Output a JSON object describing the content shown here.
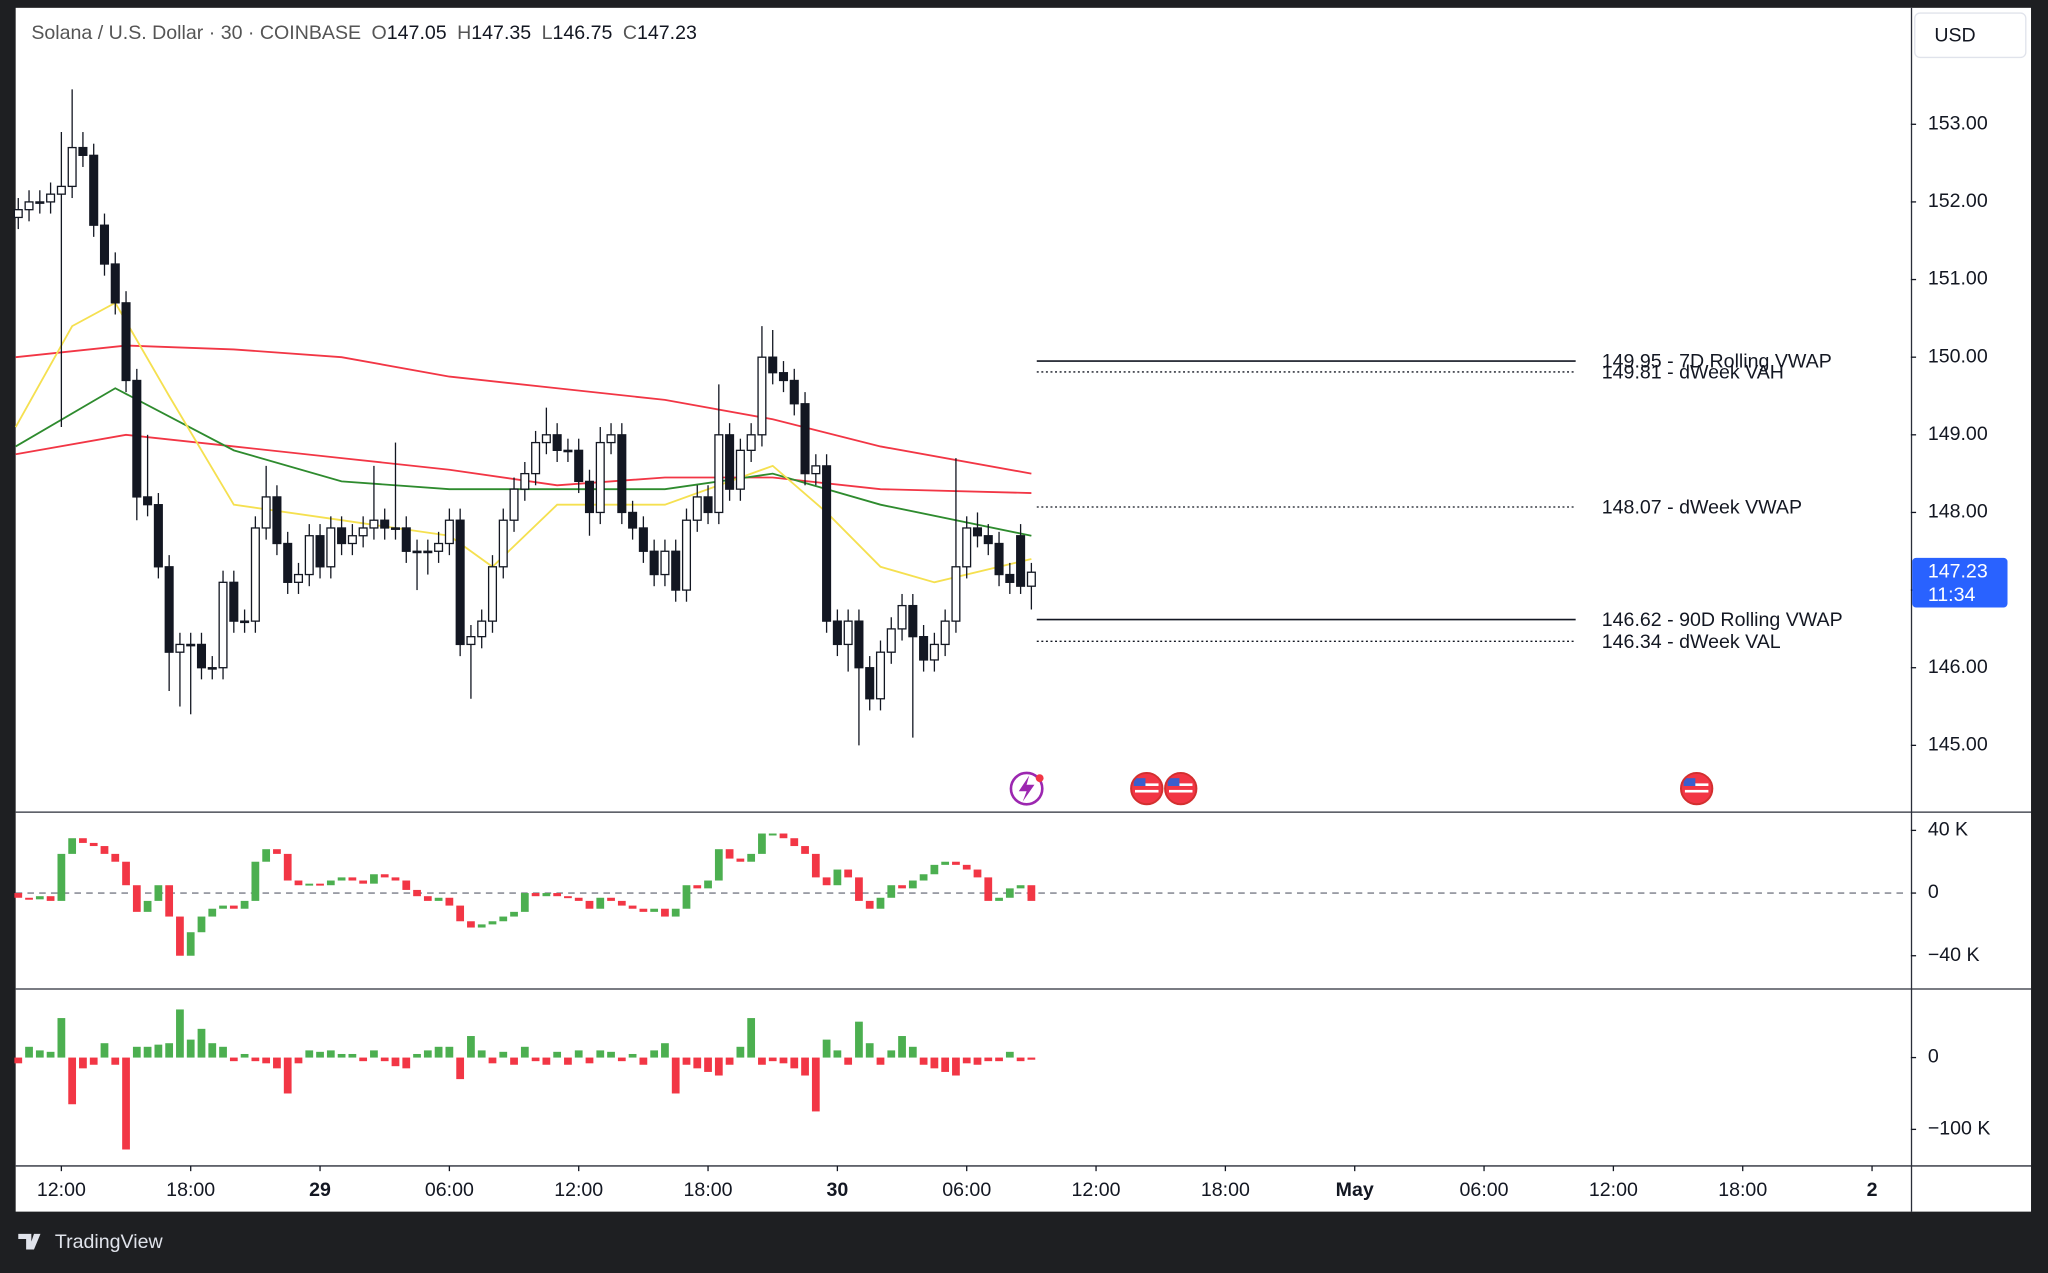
{
  "header": {
    "symbol": "Solana / U.S. Dollar · 30 · COINBASE",
    "ohlc": [
      {
        "label": "O",
        "value": 147.05
      },
      {
        "label": "H",
        "value": 147.35
      },
      {
        "label": "L",
        "value": 146.75
      },
      {
        "label": "C",
        "value": 147.23
      }
    ]
  },
  "chart_data": [
    {
      "type": "candlestick",
      "currency": "USD",
      "up_color": "#ffffff",
      "down_color": "#131722",
      "xlim": [
        -0.24,
        175.6
      ],
      "ylim": [
        144.14,
        154.5
      ],
      "yticks": [
        {
          "value": 145,
          "label": "145.00"
        },
        {
          "value": 146,
          "label": "146.00"
        },
        {
          "value": 147,
          "label": "147.00"
        },
        {
          "value": 148,
          "label": "148.00"
        },
        {
          "value": 149,
          "label": "149.00"
        },
        {
          "value": 150,
          "label": "150.00"
        },
        {
          "value": 151,
          "label": "151.00"
        },
        {
          "value": 152,
          "label": "152.00"
        },
        {
          "value": 153,
          "label": "153.00"
        }
      ],
      "xticks": [
        {
          "value": 4,
          "label": "12:00"
        },
        {
          "value": 16,
          "label": "18:00"
        },
        {
          "value": 28,
          "label": "29"
        },
        {
          "value": 40,
          "label": "06:00"
        },
        {
          "value": 52,
          "label": "12:00"
        },
        {
          "value": 64,
          "label": "18:00"
        },
        {
          "value": 76,
          "label": "30"
        },
        {
          "value": 88,
          "label": "06:00"
        },
        {
          "value": 100,
          "label": "12:00"
        },
        {
          "value": 112,
          "label": "18:00"
        },
        {
          "value": 124,
          "label": "May"
        },
        {
          "value": 136,
          "label": "06:00"
        },
        {
          "value": 148,
          "label": "12:00"
        },
        {
          "value": 160,
          "label": "18:00"
        },
        {
          "value": 172,
          "label": "2"
        }
      ],
      "last_price": {
        "value": 147.23,
        "countdown": "11:34",
        "color": "#2962ff"
      },
      "candles": [
        [
          151.8,
          152.05,
          151.65,
          151.9
        ],
        [
          151.9,
          152.15,
          151.75,
          152.0
        ],
        [
          152.0,
          152.15,
          151.85,
          152.0
        ],
        [
          152.0,
          152.25,
          151.85,
          152.1
        ],
        [
          152.1,
          152.9,
          149.1,
          152.2
        ],
        [
          152.2,
          153.45,
          152.05,
          152.7
        ],
        [
          152.7,
          152.9,
          152.45,
          152.6
        ],
        [
          152.6,
          152.75,
          151.55,
          151.7
        ],
        [
          151.7,
          151.85,
          151.05,
          151.2
        ],
        [
          151.2,
          151.35,
          150.55,
          150.7
        ],
        [
          150.7,
          150.85,
          149.55,
          149.7
        ],
        [
          149.7,
          149.85,
          147.9,
          148.2
        ],
        [
          148.2,
          149.0,
          147.95,
          148.1
        ],
        [
          148.1,
          148.25,
          147.15,
          147.3
        ],
        [
          147.3,
          147.45,
          145.7,
          146.2
        ],
        [
          146.2,
          146.45,
          145.5,
          146.3
        ],
        [
          146.3,
          146.45,
          145.4,
          146.3
        ],
        [
          146.3,
          146.45,
          145.85,
          146.0
        ],
        [
          146.0,
          146.15,
          145.85,
          146.0
        ],
        [
          146.0,
          147.25,
          145.85,
          147.1
        ],
        [
          147.1,
          147.25,
          146.45,
          146.6
        ],
        [
          146.6,
          146.75,
          146.45,
          146.6
        ],
        [
          146.6,
          147.95,
          146.45,
          147.8
        ],
        [
          147.8,
          148.6,
          147.65,
          148.2
        ],
        [
          148.2,
          148.35,
          147.45,
          147.6
        ],
        [
          147.6,
          147.75,
          146.95,
          147.1
        ],
        [
          147.1,
          147.35,
          146.95,
          147.2
        ],
        [
          147.2,
          147.85,
          147.05,
          147.7
        ],
        [
          147.7,
          147.85,
          147.15,
          147.3
        ],
        [
          147.3,
          147.95,
          147.15,
          147.8
        ],
        [
          147.8,
          147.95,
          147.45,
          147.6
        ],
        [
          147.6,
          147.85,
          147.45,
          147.7
        ],
        [
          147.7,
          147.95,
          147.55,
          147.8
        ],
        [
          147.8,
          148.6,
          147.65,
          147.9
        ],
        [
          147.9,
          148.05,
          147.65,
          147.8
        ],
        [
          147.8,
          148.9,
          147.65,
          147.8
        ],
        [
          147.8,
          147.95,
          147.35,
          147.5
        ],
        [
          147.5,
          147.65,
          147.0,
          147.5
        ],
        [
          147.5,
          147.65,
          147.2,
          147.5
        ],
        [
          147.5,
          147.75,
          147.35,
          147.6
        ],
        [
          147.6,
          148.05,
          147.45,
          147.9
        ],
        [
          147.9,
          148.05,
          146.15,
          146.3
        ],
        [
          146.3,
          146.55,
          145.6,
          146.4
        ],
        [
          146.4,
          146.75,
          146.25,
          146.6
        ],
        [
          146.6,
          147.45,
          146.45,
          147.3
        ],
        [
          147.3,
          148.05,
          147.15,
          147.9
        ],
        [
          147.9,
          148.45,
          147.75,
          148.3
        ],
        [
          148.3,
          148.65,
          148.15,
          148.5
        ],
        [
          148.5,
          149.05,
          148.35,
          148.9
        ],
        [
          148.9,
          149.35,
          148.75,
          149.0
        ],
        [
          149.0,
          149.15,
          148.65,
          148.8
        ],
        [
          148.8,
          148.95,
          148.65,
          148.8
        ],
        [
          148.8,
          148.95,
          148.25,
          148.4
        ],
        [
          148.4,
          148.55,
          147.7,
          148.0
        ],
        [
          148.0,
          149.1,
          147.85,
          148.9
        ],
        [
          148.9,
          149.15,
          148.75,
          149.0
        ],
        [
          149.0,
          149.15,
          147.85,
          148.0
        ],
        [
          148.0,
          148.15,
          147.65,
          147.8
        ],
        [
          147.8,
          147.95,
          147.35,
          147.5
        ],
        [
          147.5,
          147.65,
          147.05,
          147.2
        ],
        [
          147.2,
          147.65,
          147.05,
          147.5
        ],
        [
          147.5,
          147.65,
          146.85,
          147.0
        ],
        [
          147.0,
          148.05,
          146.85,
          147.9
        ],
        [
          147.9,
          148.35,
          147.75,
          148.2
        ],
        [
          148.2,
          148.35,
          147.85,
          148.0
        ],
        [
          148.0,
          149.65,
          147.85,
          149.0
        ],
        [
          149.0,
          149.15,
          148.15,
          148.3
        ],
        [
          148.3,
          148.95,
          148.15,
          148.8
        ],
        [
          148.8,
          149.15,
          148.65,
          149.0
        ],
        [
          149.0,
          150.4,
          148.85,
          150.0
        ],
        [
          150.0,
          150.35,
          149.65,
          149.8
        ],
        [
          149.8,
          149.95,
          149.55,
          149.7
        ],
        [
          149.7,
          149.85,
          149.25,
          149.4
        ],
        [
          149.4,
          149.55,
          148.35,
          148.5
        ],
        [
          148.5,
          148.75,
          148.35,
          148.6
        ],
        [
          148.6,
          148.75,
          146.45,
          146.6
        ],
        [
          146.6,
          146.75,
          146.15,
          146.3
        ],
        [
          146.3,
          146.75,
          145.95,
          146.6
        ],
        [
          146.6,
          146.75,
          145.0,
          146.0
        ],
        [
          146.0,
          146.15,
          145.45,
          145.6
        ],
        [
          145.6,
          146.35,
          145.45,
          146.2
        ],
        [
          146.2,
          146.65,
          146.05,
          146.5
        ],
        [
          146.5,
          146.95,
          146.35,
          146.8
        ],
        [
          146.8,
          146.95,
          145.1,
          146.4
        ],
        [
          146.4,
          146.55,
          145.95,
          146.1
        ],
        [
          146.1,
          146.45,
          145.95,
          146.3
        ],
        [
          146.3,
          146.75,
          146.15,
          146.6
        ],
        [
          146.6,
          148.7,
          146.45,
          147.3
        ],
        [
          147.3,
          147.95,
          147.15,
          147.8
        ],
        [
          147.8,
          148.0,
          147.55,
          147.7
        ],
        [
          147.7,
          147.85,
          147.45,
          147.6
        ],
        [
          147.6,
          147.75,
          147.05,
          147.2
        ],
        [
          147.2,
          147.35,
          146.95,
          147.1
        ],
        [
          147.7,
          147.85,
          146.95,
          147.05
        ],
        [
          147.05,
          147.35,
          146.75,
          147.23
        ]
      ],
      "series": [
        {
          "color": "#f23645",
          "x": [
            -0.24,
            10,
            20,
            30,
            40,
            50,
            60,
            70,
            80,
            94
          ],
          "values": [
            150.0,
            150.15,
            150.1,
            150.0,
            149.75,
            149.6,
            149.45,
            149.2,
            148.85,
            148.5
          ]
        },
        {
          "color": "#f23645",
          "x": [
            -0.24,
            10,
            20,
            30,
            40,
            50,
            60,
            70,
            80,
            94
          ],
          "values": [
            148.75,
            149.0,
            148.85,
            148.7,
            148.55,
            148.35,
            148.45,
            148.45,
            148.3,
            148.25
          ]
        },
        {
          "color": "#2e8b2e",
          "x": [
            -0.24,
            9,
            20,
            30,
            40,
            50,
            60,
            70,
            80,
            94
          ],
          "values": [
            148.85,
            149.6,
            148.8,
            148.4,
            148.3,
            148.3,
            148.3,
            148.5,
            148.1,
            147.7
          ]
        },
        {
          "color": "#f5e050",
          "x": [
            -0.24,
            5,
            9,
            14,
            20,
            30,
            40,
            44,
            50,
            60,
            70,
            75,
            80,
            85,
            94
          ],
          "values": [
            149.1,
            150.4,
            150.7,
            149.5,
            148.1,
            147.9,
            147.7,
            147.3,
            148.1,
            148.1,
            148.6,
            148.0,
            147.3,
            147.1,
            147.4
          ]
        }
      ],
      "levels": [
        {
          "value": 149.95,
          "label": "149.95 - 7D Rolling VWAP",
          "style": "solid"
        },
        {
          "value": 149.81,
          "label": "149.81 - dWeek VAH",
          "style": "dotted"
        },
        {
          "value": 148.07,
          "label": "148.07 - dWeek VWAP",
          "style": "dotted"
        },
        {
          "value": 146.62,
          "label": "146.62 - 90D Rolling VWAP",
          "style": "solid"
        },
        {
          "value": 146.34,
          "label": "146.34 - dWeek VAL",
          "style": "dotted"
        }
      ]
    },
    {
      "type": "delta",
      "up_color": "#4caf50",
      "down_color": "#f23645",
      "ylim": [
        -60833,
        51667
      ],
      "baseline": 0,
      "baseline_style": "dashed",
      "yticks": [
        {
          "value": 40000,
          "label": "40 K"
        },
        0,
        {
          "value": -40000,
          "label": "−40 K"
        }
      ],
      "values": [
        -3000,
        -4000,
        -2000,
        -5000,
        25000,
        35000,
        32000,
        30000,
        25000,
        20000,
        5000,
        -12000,
        -5000,
        5000,
        -15000,
        -40000,
        -25000,
        -15000,
        -10000,
        -8000,
        -10000,
        -5000,
        20000,
        28000,
        25000,
        8000,
        5000,
        6000,
        5000,
        8000,
        10000,
        8000,
        6000,
        12000,
        10000,
        8000,
        2000,
        -2000,
        -5000,
        -3000,
        -8000,
        -18000,
        -22000,
        -20000,
        -18000,
        -15000,
        -12000,
        0,
        -2000,
        0,
        -2000,
        -3000,
        -5000,
        -10000,
        -3000,
        -5000,
        -8000,
        -10000,
        -12000,
        -10000,
        -15000,
        -10000,
        5000,
        3000,
        8000,
        28000,
        22000,
        20000,
        25000,
        38000,
        38000,
        35000,
        30000,
        25000,
        10000,
        5000,
        15000,
        10000,
        -5000,
        -10000,
        -3000,
        5000,
        3000,
        8000,
        12000,
        18000,
        20000,
        18000,
        15000,
        10000,
        -5000,
        -3000,
        3000,
        5000,
        -5000
      ]
    },
    {
      "type": "bar",
      "up_color": "#4caf50",
      "down_color": "#f23645",
      "ylim": [
        -150909,
        96364
      ],
      "yticks": [
        0,
        {
          "value": -100000,
          "label": "−100 K"
        }
      ],
      "values": [
        -8000,
        15000,
        10000,
        8000,
        55000,
        -65000,
        -15000,
        -10000,
        20000,
        -10000,
        -128000,
        15000,
        15000,
        18000,
        20000,
        67000,
        25000,
        40000,
        20000,
        15000,
        -5000,
        5000,
        -5000,
        -8000,
        -15000,
        -50000,
        -8000,
        10000,
        8000,
        10000,
        5000,
        5000,
        -5000,
        10000,
        -5000,
        -12000,
        -15000,
        5000,
        10000,
        15000,
        15000,
        -30000,
        30000,
        10000,
        -8000,
        8000,
        -10000,
        15000,
        -5000,
        -10000,
        8000,
        -10000,
        10000,
        -8000,
        10000,
        8000,
        -5000,
        5000,
        -10000,
        10000,
        20000,
        -50000,
        -10000,
        -15000,
        -20000,
        -25000,
        -10000,
        15000,
        55000,
        -10000,
        -5000,
        -8000,
        -15000,
        -25000,
        -75000,
        25000,
        10000,
        -10000,
        50000,
        20000,
        -10000,
        10000,
        30000,
        15000,
        -10000,
        -15000,
        -20000,
        -25000,
        -8000,
        -10000,
        -5000,
        -5000,
        8000,
        -5000,
        -3000
      ]
    }
  ],
  "footer": {
    "brand": "TradingView"
  }
}
